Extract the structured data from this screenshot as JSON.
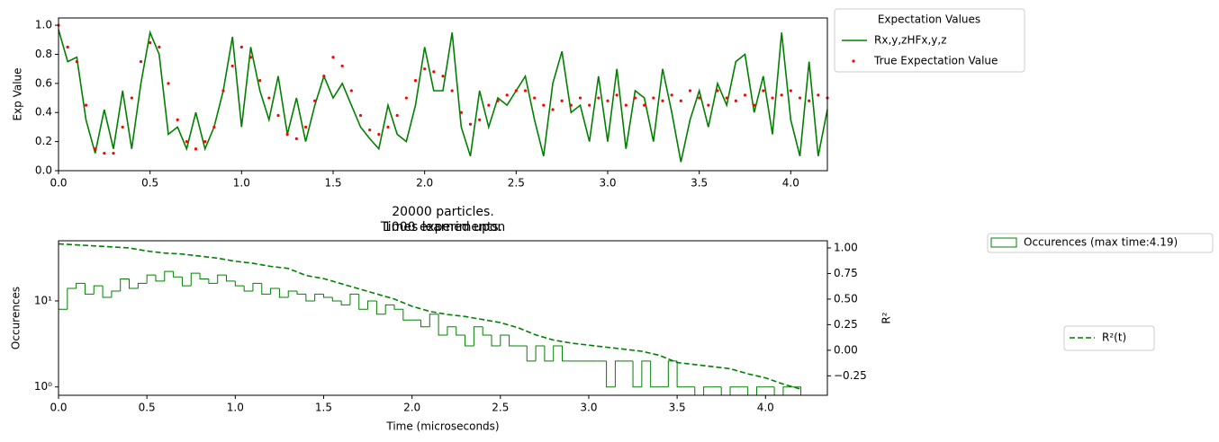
{
  "chart_data": [
    {
      "type": "line",
      "y_label": "Exp Value",
      "legend_title": "Expectation Values",
      "xlim": [
        0,
        4.2
      ],
      "ylim": [
        0,
        1.05
      ],
      "xticks": [
        {
          "value": 0,
          "label": "0.0"
        },
        0.5,
        {
          "value": 1,
          "label": "1.0"
        },
        1.5,
        {
          "value": 2,
          "label": "2.0"
        },
        2.5,
        {
          "value": 3,
          "label": "3.0"
        },
        3.5,
        {
          "value": 4,
          "label": "4.0"
        }
      ],
      "yticks": [
        {
          "value": 0,
          "label": "0.0"
        },
        0.2,
        0.4,
        0.6,
        0.8,
        {
          "value": 1,
          "label": "1.0"
        }
      ],
      "x": [
        0,
        0.05,
        0.1,
        0.15,
        0.2,
        0.25,
        0.3,
        0.35,
        0.4,
        0.45,
        0.5,
        0.55,
        0.6,
        0.65,
        0.7,
        0.75,
        0.8,
        0.85,
        0.9,
        0.95,
        1,
        1.05,
        1.1,
        1.15,
        1.2,
        1.25,
        1.3,
        1.35,
        1.4,
        1.45,
        1.5,
        1.55,
        1.6,
        1.65,
        1.7,
        1.75,
        1.8,
        1.85,
        1.9,
        1.95,
        2,
        2.05,
        2.1,
        2.15,
        2.2,
        2.25,
        2.3,
        2.35,
        2.4,
        2.45,
        2.5,
        2.55,
        2.6,
        2.65,
        2.7,
        2.75,
        2.8,
        2.85,
        2.9,
        2.95,
        3,
        3.05,
        3.1,
        3.15,
        3.2,
        3.25,
        3.3,
        3.35,
        3.4,
        3.45,
        3.5,
        3.55,
        3.6,
        3.65,
        3.7,
        3.75,
        3.8,
        3.85,
        3.9,
        3.95,
        4,
        4.05,
        4.1,
        4.15,
        4.2
      ],
      "series": [
        {
          "name": "Rx,y,zHFx,y,z",
          "type": "line",
          "color": "#008000",
          "values": [
            0.97,
            0.75,
            0.78,
            0.35,
            0.12,
            0.42,
            0.15,
            0.55,
            0.15,
            0.6,
            0.95,
            0.8,
            0.25,
            0.3,
            0.15,
            0.4,
            0.15,
            0.3,
            0.55,
            0.92,
            0.3,
            0.85,
            0.55,
            0.35,
            0.65,
            0.25,
            0.5,
            0.2,
            0.45,
            0.65,
            0.5,
            0.6,
            0.45,
            0.3,
            0.22,
            0.15,
            0.45,
            0.25,
            0.2,
            0.45,
            0.85,
            0.55,
            0.55,
            0.95,
            0.3,
            0.1,
            0.55,
            0.3,
            0.5,
            0.45,
            0.55,
            0.65,
            0.35,
            0.1,
            0.6,
            0.82,
            0.4,
            0.45,
            0.2,
            0.65,
            0.2,
            0.7,
            0.15,
            0.55,
            0.5,
            0.2,
            0.7,
            0.4,
            0.06,
            0.35,
            0.55,
            0.3,
            0.6,
            0.45,
            0.75,
            0.8,
            0.4,
            0.65,
            0.25,
            0.95,
            0.35,
            0.1,
            0.75,
            0.1,
            0.42
          ]
        },
        {
          "name": "True Expectation Value",
          "type": "scatter",
          "color": "#ff0000",
          "values": [
            1.0,
            0.85,
            0.75,
            0.45,
            0.15,
            0.12,
            0.12,
            0.3,
            0.5,
            0.75,
            0.88,
            0.85,
            0.6,
            0.35,
            0.2,
            0.15,
            0.2,
            0.3,
            0.55,
            0.72,
            0.85,
            0.78,
            0.62,
            0.5,
            0.38,
            0.25,
            0.22,
            0.3,
            0.48,
            0.65,
            0.78,
            0.72,
            0.55,
            0.38,
            0.28,
            0.25,
            0.3,
            0.38,
            0.5,
            0.62,
            0.7,
            0.68,
            0.65,
            0.55,
            0.4,
            0.32,
            0.35,
            0.45,
            0.48,
            0.52,
            0.55,
            0.55,
            0.5,
            0.45,
            0.42,
            0.48,
            0.45,
            0.5,
            0.45,
            0.5,
            0.48,
            0.52,
            0.45,
            0.5,
            0.45,
            0.5,
            0.48,
            0.52,
            0.48,
            0.55,
            0.5,
            0.45,
            0.55,
            0.5,
            0.48,
            0.52,
            0.45,
            0.55,
            0.5,
            0.52,
            0.55,
            0.5,
            0.48,
            0.52,
            0.5
          ]
        }
      ]
    },
    {
      "type": "histogram",
      "title": "20000 particles.",
      "subtitle": "1000 experiments.",
      "annotation": "Times learned upon",
      "x_label": "Time (microseconds)",
      "y_label": "Occurences",
      "y2_label": "R²",
      "log_y": true,
      "xlim": [
        0,
        4.35
      ],
      "ylim": [
        0.8,
        50
      ],
      "y2lim": [
        -0.44,
        1.07
      ],
      "xticks": [
        {
          "value": 0,
          "label": "0.0"
        },
        0.5,
        {
          "value": 1,
          "label": "1.0"
        },
        1.5,
        {
          "value": 2,
          "label": "2.0"
        },
        2.5,
        {
          "value": 3,
          "label": "3.0"
        },
        3.5,
        {
          "value": 4,
          "label": "4.0"
        }
      ],
      "yticks": [
        {
          "value": 1,
          "label": "10⁰"
        },
        {
          "value": 10,
          "label": "10¹"
        }
      ],
      "y2ticks": [
        {
          "value": -0.25,
          "label": "−0.25"
        },
        {
          "value": 0,
          "label": "0.00"
        },
        0.25,
        {
          "value": 0.5,
          "label": "0.50"
        },
        0.75,
        {
          "value": 1,
          "label": "1.00"
        }
      ],
      "bins": [
        0,
        0.05,
        0.1,
        0.15,
        0.2,
        0.25,
        0.3,
        0.35,
        0.4,
        0.45,
        0.5,
        0.55,
        0.6,
        0.65,
        0.7,
        0.75,
        0.8,
        0.85,
        0.9,
        0.95,
        1,
        1.05,
        1.1,
        1.15,
        1.2,
        1.25,
        1.3,
        1.35,
        1.4,
        1.45,
        1.5,
        1.55,
        1.6,
        1.65,
        1.7,
        1.75,
        1.8,
        1.85,
        1.9,
        1.95,
        2,
        2.05,
        2.1,
        2.15,
        2.2,
        2.25,
        2.3,
        2.35,
        2.4,
        2.45,
        2.5,
        2.55,
        2.6,
        2.65,
        2.7,
        2.75,
        2.8,
        2.85,
        2.9,
        2.95,
        3,
        3.05,
        3.1,
        3.15,
        3.2,
        3.25,
        3.3,
        3.35,
        3.4,
        3.45,
        3.5,
        3.55,
        3.6,
        3.65,
        3.7,
        3.75,
        3.8,
        3.85,
        3.9,
        3.95,
        4,
        4.05,
        4.1,
        4.15,
        4.2
      ],
      "series": [
        {
          "name": "Occurences (max time:4.19)",
          "type": "histogram",
          "color": "#008000",
          "values": [
            8,
            14,
            16,
            12,
            15,
            11,
            13,
            18,
            14,
            16,
            20,
            17,
            22,
            19,
            15,
            21,
            18,
            16,
            20,
            17,
            15,
            13,
            16,
            12,
            14,
            11,
            13,
            12,
            10,
            12,
            11,
            10,
            9,
            12,
            8,
            10,
            7,
            9,
            8,
            6,
            6,
            5,
            7,
            4,
            5,
            4,
            3,
            5,
            4,
            3,
            4,
            3,
            3,
            2,
            3,
            2,
            3,
            2,
            2,
            2,
            2,
            2,
            1,
            2,
            2,
            1,
            2,
            1,
            1,
            2,
            1,
            1,
            0,
            1,
            1,
            0,
            1,
            1,
            0,
            1,
            1,
            0,
            1,
            1
          ]
        },
        {
          "name": "R²(t)",
          "type": "line",
          "axis": "y2",
          "color": "#008000",
          "x": [
            0,
            0.1,
            0.2,
            0.3,
            0.4,
            0.5,
            0.6,
            0.7,
            0.8,
            0.9,
            1,
            1.1,
            1.2,
            1.3,
            1.4,
            1.5,
            1.6,
            1.7,
            1.8,
            1.9,
            2,
            2.1,
            2.2,
            2.3,
            2.4,
            2.5,
            2.6,
            2.7,
            2.8,
            2.9,
            3,
            3.1,
            3.2,
            3.3,
            3.4,
            3.5,
            3.6,
            3.7,
            3.8,
            3.9,
            4,
            4.1,
            4.2
          ],
          "values": [
            1.04,
            1.03,
            1.02,
            1.01,
            1.0,
            0.97,
            0.95,
            0.94,
            0.92,
            0.9,
            0.87,
            0.85,
            0.82,
            0.8,
            0.73,
            0.7,
            0.65,
            0.6,
            0.55,
            0.5,
            0.43,
            0.38,
            0.35,
            0.33,
            0.3,
            0.27,
            0.22,
            0.15,
            0.1,
            0.07,
            0.05,
            0.03,
            0.01,
            -0.01,
            -0.05,
            -0.12,
            -0.14,
            -0.16,
            -0.18,
            -0.23,
            -0.27,
            -0.33,
            -0.38
          ]
        }
      ]
    }
  ]
}
